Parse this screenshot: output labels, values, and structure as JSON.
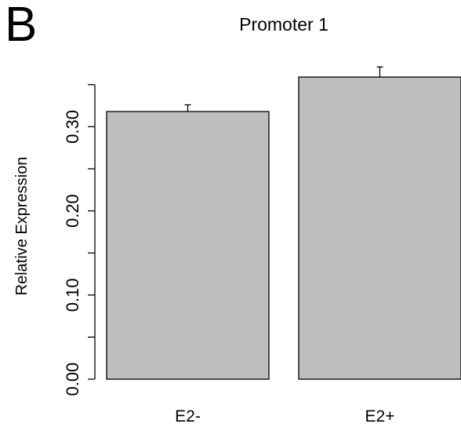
{
  "panel_label": "B",
  "chart_data": {
    "type": "bar",
    "title": "Promoter 1",
    "xlabel": "",
    "ylabel": "Relative Expression",
    "categories": [
      "E2-",
      "E2+"
    ],
    "values": [
      0.318,
      0.359
    ],
    "error": [
      0.008,
      0.012
    ],
    "ylim": [
      0,
      0.35
    ],
    "yticks_major": [
      0.0,
      0.1,
      0.2,
      0.3
    ],
    "ytick_labels": [
      "0.00",
      "0.10",
      "0.20",
      "0.30"
    ],
    "yticks_minor": [
      0.05,
      0.15,
      0.25,
      0.35
    ],
    "bar_color": "#bebebe",
    "grid": false,
    "legend": "none"
  }
}
